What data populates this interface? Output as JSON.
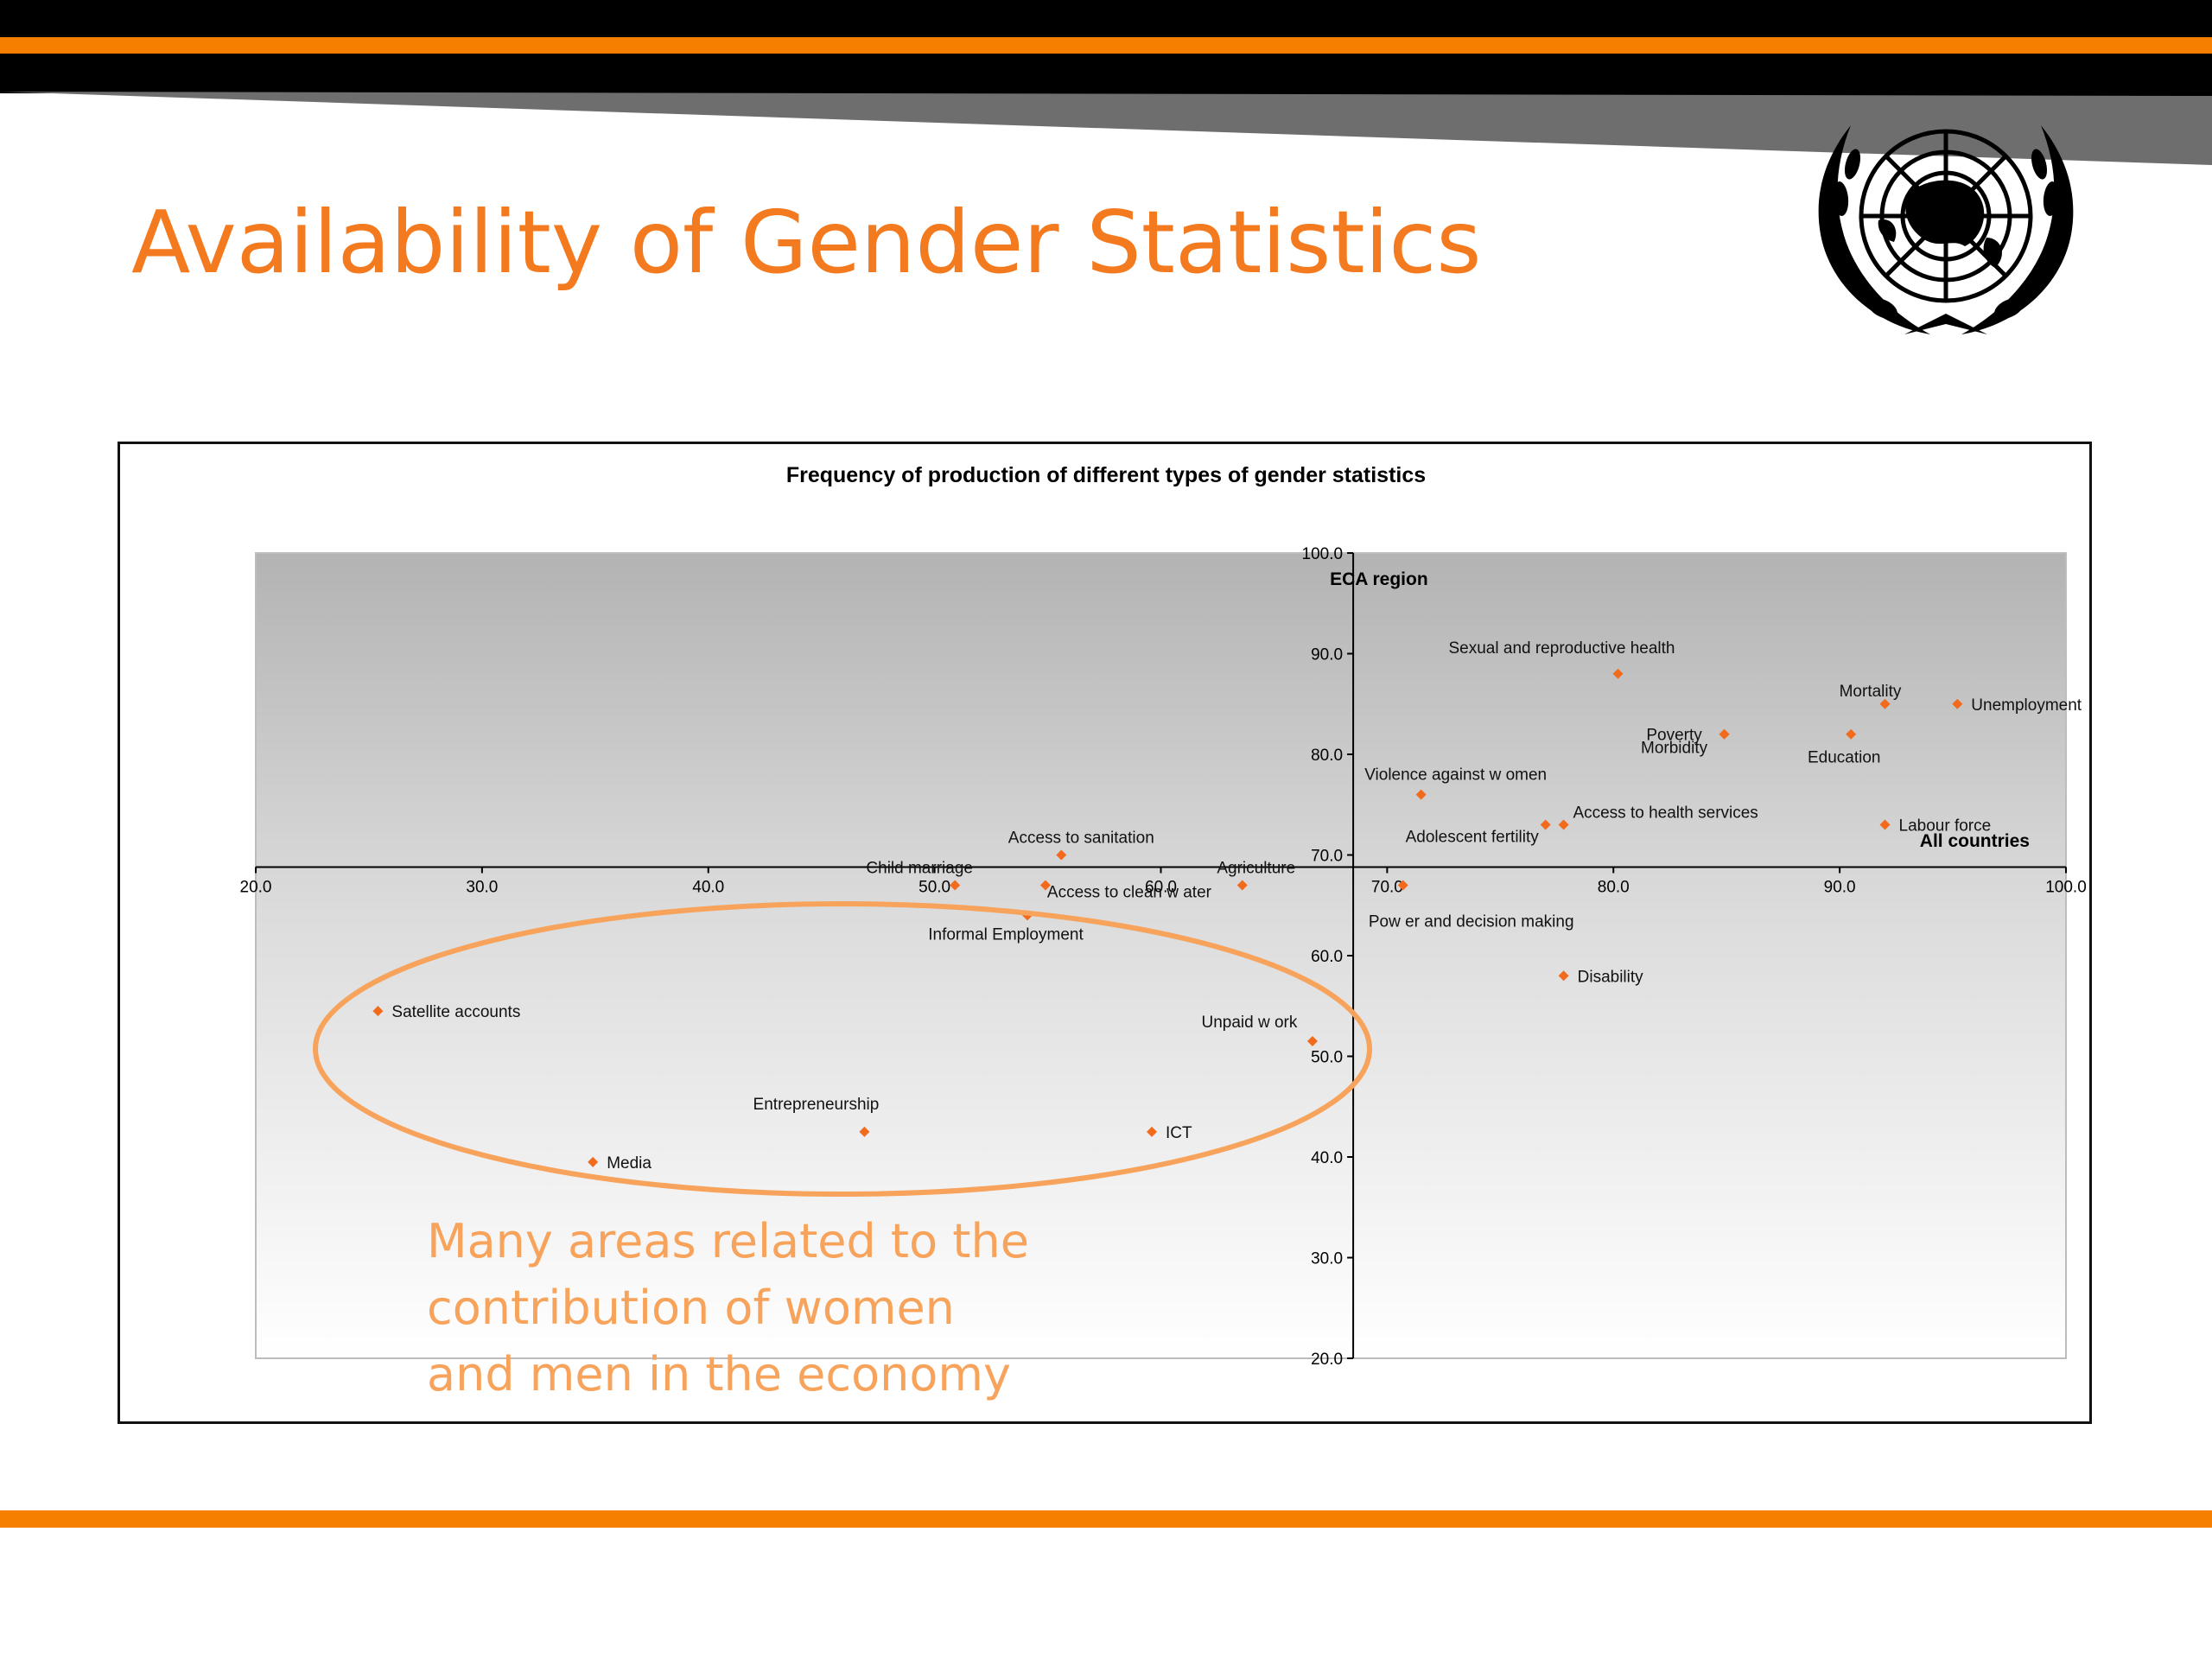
{
  "slide": {
    "title": "Availability of Gender Statistics",
    "note": "Many areas related to the contribution of women and men in the economy",
    "colors": {
      "accent": "#f77f00",
      "title": "#f47a1f",
      "note": "#f7a35c",
      "header": "#000000"
    },
    "logo_icon": "un-emblem-icon"
  },
  "chart_data": {
    "type": "scatter",
    "title": "Frequency of production of different types of gender statistics",
    "xlabel": "All countries",
    "ylabel": "ECA region",
    "xlim": [
      20,
      100
    ],
    "ylim": [
      20,
      100
    ],
    "x_ticks": [
      "20.0",
      "30.0",
      "40.0",
      "50.0",
      "60.0",
      "70.0",
      "80.0",
      "90.0",
      "100.0"
    ],
    "y_ticks": [
      "20.0",
      "30.0",
      "40.0",
      "50.0",
      "60.0",
      "70.0",
      "80.0",
      "90.0",
      "100.0"
    ],
    "axis_crossing": {
      "x_at_y": 68.8,
      "y_at_x": 68.5
    },
    "marker_color": "#f26b1d",
    "grid": false,
    "points": [
      {
        "label": "Sexual and reproductive health",
        "x": 80.2,
        "y": 88.0
      },
      {
        "label": "Mortality",
        "x": 92.0,
        "y": 85.0
      },
      {
        "label": "Unemployment",
        "x": 95.2,
        "y": 85.0
      },
      {
        "label": "Poverty",
        "x": 84.9,
        "y": 82.0
      },
      {
        "label": "Morbidity",
        "x": 84.9,
        "y": 82.0
      },
      {
        "label": "Education",
        "x": 90.5,
        "y": 82.0
      },
      {
        "label": "Violence against w omen",
        "x": 71.5,
        "y": 76.0
      },
      {
        "label": "Adolescent fertility",
        "x": 77.0,
        "y": 73.0
      },
      {
        "label": "Access to health services",
        "x": 77.8,
        "y": 73.0
      },
      {
        "label": "Labour force",
        "x": 92.0,
        "y": 73.0
      },
      {
        "label": "Access to sanitation",
        "x": 55.6,
        "y": 70.0
      },
      {
        "label": "Child marriage",
        "x": 50.9,
        "y": 67.0
      },
      {
        "label": "Access to clean w ater",
        "x": 54.9,
        "y": 67.0
      },
      {
        "label": "Agriculture",
        "x": 63.6,
        "y": 67.0
      },
      {
        "label": "Pow er and decision making",
        "x": 70.7,
        "y": 67.0
      },
      {
        "label": "Informal Employment",
        "x": 54.1,
        "y": 64.0
      },
      {
        "label": "Disability",
        "x": 77.8,
        "y": 58.0
      },
      {
        "label": "Satellite accounts",
        "x": 25.4,
        "y": 54.5
      },
      {
        "label": "Unpaid w ork",
        "x": 66.7,
        "y": 51.5
      },
      {
        "label": "Entrepreneurship",
        "x": 46.9,
        "y": 42.5
      },
      {
        "label": "ICT",
        "x": 59.6,
        "y": 42.5
      },
      {
        "label": "Media",
        "x": 34.9,
        "y": 39.5
      }
    ]
  }
}
